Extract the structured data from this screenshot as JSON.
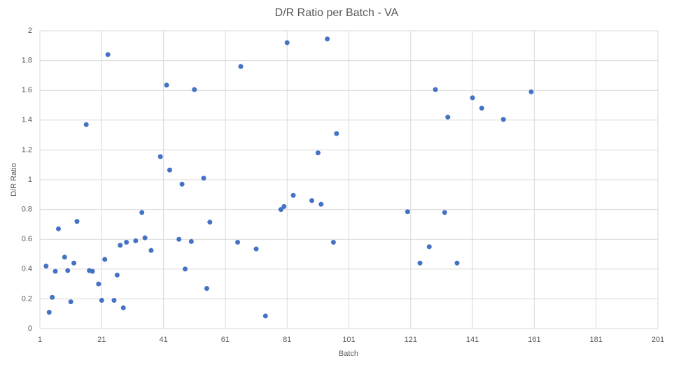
{
  "chart_data": {
    "type": "scatter",
    "title": "D/R Ratio per Batch - VA",
    "x_label": "Batch",
    "y_label": "D/R Ratio",
    "color": "#4472c4",
    "grid": true,
    "x": [
      3,
      4,
      5,
      6,
      7,
      9,
      10,
      11,
      12,
      13,
      16,
      17,
      18,
      20,
      21,
      22,
      23,
      25,
      26,
      27,
      28,
      29,
      32,
      34,
      35,
      37,
      40,
      42,
      43,
      46,
      47,
      48,
      50,
      51,
      54,
      55,
      56,
      65,
      66,
      71,
      74,
      79,
      80,
      81,
      83,
      89,
      91,
      92,
      94,
      96,
      97,
      120,
      124,
      127,
      129,
      132,
      133,
      136,
      141,
      144,
      151,
      160
    ],
    "values": [
      0.42,
      0.11,
      0.21,
      0.385,
      0.67,
      0.48,
      0.39,
      0.18,
      0.44,
      0.72,
      1.37,
      0.39,
      0.385,
      0.3,
      0.19,
      0.465,
      1.84,
      0.19,
      0.36,
      0.56,
      0.14,
      0.58,
      0.59,
      0.78,
      0.61,
      0.525,
      1.155,
      1.635,
      1.065,
      0.6,
      0.97,
      0.4,
      0.585,
      1.605,
      1.01,
      0.27,
      0.715,
      0.58,
      1.76,
      0.535,
      0.085,
      0.8,
      0.82,
      1.92,
      0.895,
      0.86,
      1.18,
      0.835,
      1.945,
      0.58,
      1.31,
      0.785,
      0.44,
      0.55,
      1.605,
      0.78,
      1.42,
      0.44,
      1.55,
      1.48,
      1.405,
      1.59
    ],
    "xlim": [
      1,
      201
    ],
    "xticks": [
      1,
      21,
      41,
      61,
      81,
      101,
      121,
      141,
      161,
      181,
      201
    ],
    "ylim": [
      0,
      2
    ],
    "yticks": [
      0,
      0.2,
      0.4,
      0.6,
      0.8,
      1,
      1.2,
      1.4,
      1.6,
      1.8,
      2
    ]
  }
}
